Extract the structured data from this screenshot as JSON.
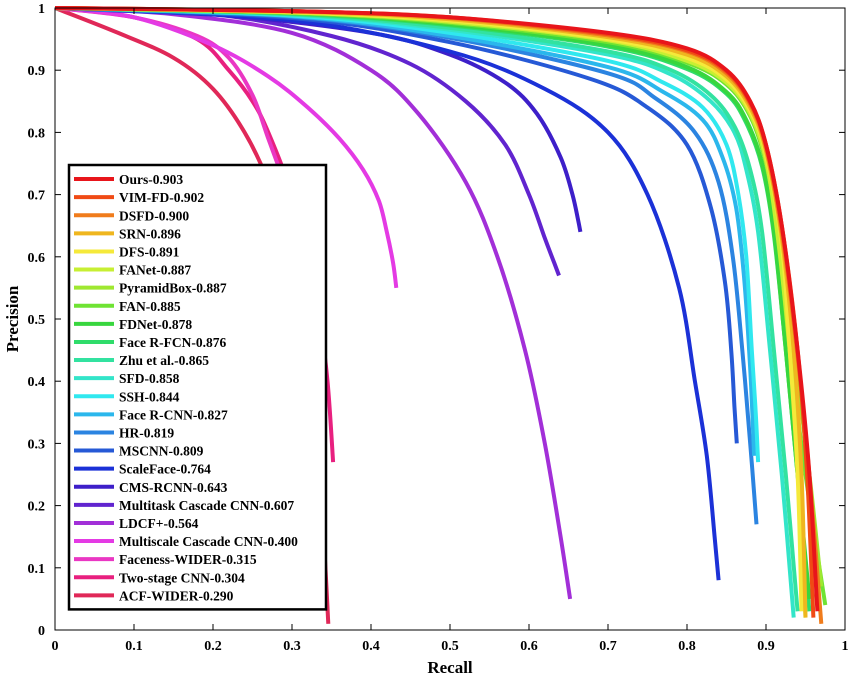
{
  "chart_data": {
    "type": "line",
    "title": "",
    "xlabel": "Recall",
    "ylabel": "Precision",
    "xlim": [
      0,
      1
    ],
    "ylim": [
      0,
      1
    ],
    "xticks": [
      "0",
      "0.1",
      "0.2",
      "0.3",
      "0.4",
      "0.5",
      "0.6",
      "0.7",
      "0.8",
      "0.9",
      "1"
    ],
    "yticks": [
      "0",
      "0.1",
      "0.2",
      "0.3",
      "0.4",
      "0.5",
      "0.6",
      "0.7",
      "0.8",
      "0.9",
      "1"
    ],
    "grid": false,
    "legend_position": "lower-left",
    "series": [
      {
        "name": "Ours-0.903",
        "color": "#e8151b",
        "x": [
          0,
          0.3,
          0.5,
          0.7,
          0.8,
          0.85,
          0.88,
          0.9,
          0.92,
          0.94,
          0.955,
          0.965
        ],
        "y": [
          1,
          0.995,
          0.985,
          0.96,
          0.935,
          0.9,
          0.85,
          0.78,
          0.65,
          0.45,
          0.25,
          0.03
        ]
      },
      {
        "name": "VIM-FD-0.902",
        "color": "#f04a14",
        "x": [
          0,
          0.3,
          0.5,
          0.7,
          0.8,
          0.85,
          0.88,
          0.9,
          0.92,
          0.94,
          0.952,
          0.96
        ],
        "y": [
          1,
          0.995,
          0.985,
          0.958,
          0.932,
          0.898,
          0.848,
          0.78,
          0.65,
          0.45,
          0.25,
          0.02
        ]
      },
      {
        "name": "DSFD-0.900",
        "color": "#f07c1c",
        "x": [
          0,
          0.3,
          0.5,
          0.7,
          0.8,
          0.85,
          0.88,
          0.9,
          0.92,
          0.94,
          0.955,
          0.97
        ],
        "y": [
          1,
          0.995,
          0.984,
          0.956,
          0.93,
          0.895,
          0.845,
          0.775,
          0.64,
          0.44,
          0.25,
          0.01
        ]
      },
      {
        "name": "SRN-0.896",
        "color": "#efb61f",
        "x": [
          0,
          0.3,
          0.5,
          0.7,
          0.8,
          0.85,
          0.88,
          0.9,
          0.92,
          0.935,
          0.945,
          0.95
        ],
        "y": [
          1,
          0.994,
          0.982,
          0.953,
          0.925,
          0.89,
          0.84,
          0.77,
          0.63,
          0.45,
          0.25,
          0.02
        ]
      },
      {
        "name": "DFS-0.891",
        "color": "#f5e93a",
        "x": [
          0,
          0.3,
          0.5,
          0.7,
          0.8,
          0.85,
          0.88,
          0.9,
          0.92,
          0.93,
          0.94,
          0.945
        ],
        "y": [
          1,
          0.993,
          0.98,
          0.95,
          0.92,
          0.885,
          0.835,
          0.765,
          0.62,
          0.45,
          0.25,
          0.03
        ]
      },
      {
        "name": "FANet-0.887",
        "color": "#c7ef33",
        "x": [
          0,
          0.3,
          0.5,
          0.7,
          0.8,
          0.85,
          0.88,
          0.9,
          0.915,
          0.93,
          0.94,
          0.95
        ],
        "y": [
          1,
          0.993,
          0.978,
          0.948,
          0.915,
          0.88,
          0.83,
          0.755,
          0.63,
          0.45,
          0.28,
          0.02
        ]
      },
      {
        "name": "PyramidBox-0.887",
        "color": "#9fe830",
        "x": [
          0,
          0.3,
          0.5,
          0.7,
          0.8,
          0.85,
          0.88,
          0.9,
          0.915,
          0.935,
          0.955,
          0.97
        ],
        "y": [
          1,
          0.993,
          0.978,
          0.948,
          0.916,
          0.882,
          0.832,
          0.76,
          0.64,
          0.45,
          0.25,
          0.07
        ]
      },
      {
        "name": "FAN-0.885",
        "color": "#6fe333",
        "x": [
          0,
          0.3,
          0.5,
          0.7,
          0.8,
          0.85,
          0.88,
          0.9,
          0.915,
          0.93,
          0.95,
          0.975
        ],
        "y": [
          1,
          0.992,
          0.976,
          0.945,
          0.912,
          0.877,
          0.826,
          0.75,
          0.64,
          0.45,
          0.25,
          0.04
        ]
      },
      {
        "name": "FDNet-0.878",
        "color": "#38d63e",
        "x": [
          0,
          0.3,
          0.5,
          0.7,
          0.8,
          0.85,
          0.875,
          0.895,
          0.91,
          0.925,
          0.94,
          0.955
        ],
        "y": [
          1,
          0.992,
          0.974,
          0.94,
          0.905,
          0.865,
          0.82,
          0.75,
          0.64,
          0.45,
          0.25,
          0.05
        ]
      },
      {
        "name": "Face R-FCN-0.876",
        "color": "#2fdc6a",
        "x": [
          0,
          0.3,
          0.5,
          0.7,
          0.8,
          0.85,
          0.875,
          0.895,
          0.91,
          0.925,
          0.94,
          0.955
        ],
        "y": [
          1,
          0.991,
          0.972,
          0.938,
          0.902,
          0.862,
          0.815,
          0.745,
          0.635,
          0.45,
          0.25,
          0.03
        ]
      },
      {
        "name": "Zhu et al.-0.865",
        "color": "#32e2a0",
        "x": [
          0,
          0.3,
          0.5,
          0.7,
          0.78,
          0.83,
          0.86,
          0.88,
          0.895,
          0.91,
          0.925,
          0.94
        ],
        "y": [
          1,
          0.99,
          0.968,
          0.93,
          0.9,
          0.86,
          0.81,
          0.74,
          0.64,
          0.45,
          0.25,
          0.03
        ]
      },
      {
        "name": "SFD-0.858",
        "color": "#33e5c9",
        "x": [
          0,
          0.3,
          0.5,
          0.7,
          0.78,
          0.83,
          0.86,
          0.875,
          0.89,
          0.905,
          0.92,
          0.935
        ],
        "y": [
          1,
          0.989,
          0.965,
          0.925,
          0.893,
          0.85,
          0.8,
          0.74,
          0.64,
          0.45,
          0.25,
          0.02
        ]
      },
      {
        "name": "SSH-0.844",
        "color": "#30e8ef",
        "x": [
          0,
          0.3,
          0.5,
          0.7,
          0.77,
          0.82,
          0.85,
          0.865,
          0.875,
          0.882,
          0.887,
          0.89
        ],
        "y": [
          1,
          0.988,
          0.96,
          0.915,
          0.88,
          0.84,
          0.78,
          0.7,
          0.6,
          0.45,
          0.35,
          0.27
        ]
      },
      {
        "name": "Face R-CNN-0.827",
        "color": "#2bb7ec",
        "x": [
          0,
          0.3,
          0.5,
          0.7,
          0.77,
          0.82,
          0.845,
          0.862,
          0.872,
          0.88,
          0.885
        ],
        "y": [
          1,
          0.987,
          0.955,
          0.905,
          0.865,
          0.82,
          0.76,
          0.68,
          0.57,
          0.42,
          0.28
        ]
      },
      {
        "name": "HR-0.819",
        "color": "#2b84e1",
        "x": [
          0,
          0.3,
          0.5,
          0.7,
          0.76,
          0.81,
          0.84,
          0.858,
          0.87,
          0.88,
          0.888
        ],
        "y": [
          1,
          0.986,
          0.952,
          0.895,
          0.855,
          0.8,
          0.72,
          0.6,
          0.45,
          0.3,
          0.17
        ]
      },
      {
        "name": "MSCNN-0.809",
        "color": "#2659d6",
        "x": [
          0,
          0.3,
          0.5,
          0.68,
          0.75,
          0.8,
          0.83,
          0.848,
          0.856,
          0.86,
          0.863
        ],
        "y": [
          1,
          0.984,
          0.945,
          0.885,
          0.84,
          0.78,
          0.68,
          0.56,
          0.45,
          0.36,
          0.3
        ]
      },
      {
        "name": "ScaleFace-0.764",
        "color": "#1b31d7",
        "x": [
          0,
          0.3,
          0.5,
          0.62,
          0.7,
          0.75,
          0.79,
          0.81,
          0.825,
          0.835,
          0.84
        ],
        "y": [
          1,
          0.98,
          0.93,
          0.87,
          0.8,
          0.7,
          0.55,
          0.4,
          0.28,
          0.15,
          0.08
        ]
      },
      {
        "name": "CMS-RCNN-0.643",
        "color": "#3d1fc9",
        "x": [
          0,
          0.2,
          0.4,
          0.5,
          0.57,
          0.61,
          0.64,
          0.655,
          0.662,
          0.665
        ],
        "y": [
          1,
          0.99,
          0.96,
          0.925,
          0.88,
          0.83,
          0.76,
          0.7,
          0.66,
          0.64
        ]
      },
      {
        "name": "Multitask Cascade CNN-0.607",
        "color": "#6124cf",
        "x": [
          0,
          0.2,
          0.35,
          0.45,
          0.52,
          0.57,
          0.6,
          0.62,
          0.632,
          0.638
        ],
        "y": [
          1,
          0.99,
          0.955,
          0.91,
          0.85,
          0.78,
          0.7,
          0.63,
          0.59,
          0.57
        ]
      },
      {
        "name": "LDCF+-0.564",
        "color": "#a22fd8",
        "x": [
          0,
          0.15,
          0.3,
          0.4,
          0.46,
          0.52,
          0.56,
          0.595,
          0.62,
          0.64,
          0.652
        ],
        "y": [
          1,
          0.99,
          0.96,
          0.9,
          0.83,
          0.72,
          0.6,
          0.45,
          0.3,
          0.15,
          0.05
        ]
      },
      {
        "name": "Multiscale Cascade CNN-0.400",
        "color": "#e43ae4",
        "x": [
          0,
          0.1,
          0.2,
          0.27,
          0.32,
          0.36,
          0.39,
          0.41,
          0.42,
          0.428,
          0.432
        ],
        "y": [
          1,
          0.985,
          0.94,
          0.89,
          0.84,
          0.79,
          0.74,
          0.69,
          0.64,
          0.59,
          0.55
        ]
      },
      {
        "name": "Faceness-WIDER-0.315",
        "color": "#ea37c3",
        "x": [
          0,
          0.1,
          0.18,
          0.22,
          0.25,
          0.27,
          0.29,
          0.305,
          0.315,
          0.322
        ],
        "y": [
          1,
          0.985,
          0.955,
          0.92,
          0.86,
          0.79,
          0.72,
          0.66,
          0.62,
          0.59
        ]
      },
      {
        "name": "Two-stage CNN-0.304",
        "color": "#e8207f",
        "x": [
          0,
          0.1,
          0.18,
          0.22,
          0.25,
          0.27,
          0.3,
          0.32,
          0.335,
          0.345,
          0.352
        ],
        "y": [
          1,
          0.985,
          0.95,
          0.9,
          0.85,
          0.8,
          0.7,
          0.6,
          0.5,
          0.4,
          0.27
        ]
      },
      {
        "name": "ACF-WIDER-0.290",
        "color": "#e02858",
        "x": [
          0,
          0.08,
          0.15,
          0.2,
          0.24,
          0.27,
          0.295,
          0.315,
          0.33,
          0.34,
          0.346
        ],
        "y": [
          1,
          0.96,
          0.92,
          0.87,
          0.8,
          0.72,
          0.62,
          0.48,
          0.32,
          0.15,
          0.01
        ]
      }
    ]
  }
}
